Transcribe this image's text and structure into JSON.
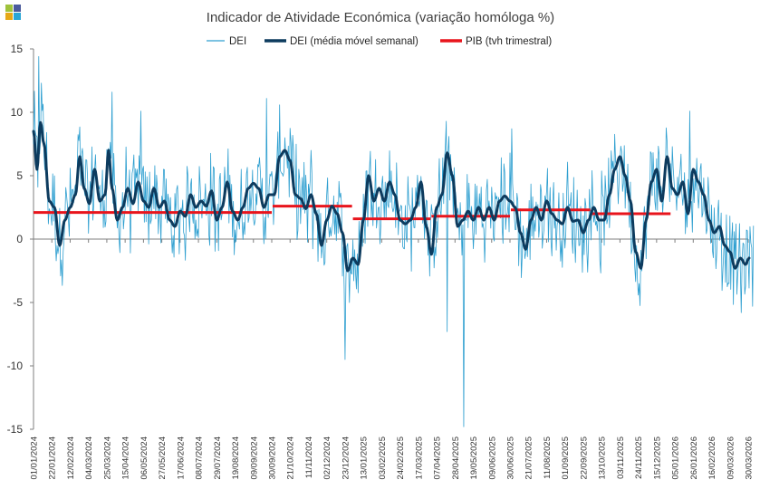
{
  "colors": {
    "dei": "#2e9fd0",
    "dei_ma": "#0d3b5e",
    "gdp": "#e8141c",
    "axis": "#7f7f7f",
    "logo": [
      "#9fc23b",
      "#4a5a9c",
      "#e6a817",
      "#2aa6d6"
    ]
  },
  "logo": {
    "name": "brand-logo-icon"
  },
  "chart_data": {
    "type": "line",
    "title": "Indicador de Atividade Económica (variação homóloga %)",
    "xlabel": "",
    "ylabel": "",
    "ylim": [
      -15,
      15
    ],
    "yticks": [
      15,
      10,
      5,
      0,
      -5,
      -10,
      -15
    ],
    "x_range": [
      "2024-01-01",
      "2026-03-30"
    ],
    "x_tick_labels": [
      "01/01/2024",
      "22/01/2024",
      "12/02/2024",
      "04/03/2024",
      "25/03/2024",
      "15/04/2024",
      "06/05/2024",
      "27/05/2024",
      "17/06/2024",
      "08/07/2024",
      "29/07/2024",
      "19/08/2024",
      "09/09/2024",
      "30/09/2024",
      "21/10/2024",
      "11/11/2024",
      "02/12/2024",
      "23/12/2024",
      "13/01/2025",
      "03/02/2025",
      "24/02/2025",
      "17/03/2025",
      "07/04/2025",
      "28/04/2025",
      "19/05/2025",
      "09/06/2025",
      "30/06/2025",
      "21/07/2025",
      "11/08/2025",
      "01/09/2025",
      "22/09/2025",
      "13/10/2025",
      "03/11/2025",
      "24/11/2025",
      "15/12/2025",
      "05/01/2026",
      "26/01/2026",
      "16/02/2026",
      "09/03/2026",
      "30/03/2026"
    ],
    "legend": [
      "DEI",
      "DEI (média móvel semanal)",
      "PIB (tvh trimestral)"
    ],
    "legend_position": "top-center",
    "series": [
      {
        "name": "DEI (média móvel semanal)",
        "note": "weekly-average anchor values (day index from 01/01/2024, value %)",
        "anchors": [
          [
            0,
            8.5
          ],
          [
            4,
            5.5
          ],
          [
            8,
            9.2
          ],
          [
            12,
            7.5
          ],
          [
            18,
            3
          ],
          [
            24,
            2.5
          ],
          [
            30,
            -0.5
          ],
          [
            36,
            1.5
          ],
          [
            42,
            2.5
          ],
          [
            48,
            3.5
          ],
          [
            53,
            6.5
          ],
          [
            58,
            4
          ],
          [
            64,
            2.8
          ],
          [
            70,
            5.5
          ],
          [
            76,
            3
          ],
          [
            82,
            3.5
          ],
          [
            86,
            7
          ],
          [
            90,
            4
          ],
          [
            96,
            1.5
          ],
          [
            102,
            2.5
          ],
          [
            108,
            4
          ],
          [
            114,
            2.8
          ],
          [
            120,
            4.5
          ],
          [
            126,
            3
          ],
          [
            132,
            2.5
          ],
          [
            138,
            4
          ],
          [
            144,
            2.5
          ],
          [
            150,
            3
          ],
          [
            156,
            1.5
          ],
          [
            162,
            1
          ],
          [
            168,
            2.2
          ],
          [
            174,
            1.8
          ],
          [
            180,
            3.5
          ],
          [
            186,
            2.5
          ],
          [
            192,
            3
          ],
          [
            198,
            2.6
          ],
          [
            204,
            3.8
          ],
          [
            210,
            1.5
          ],
          [
            216,
            2.5
          ],
          [
            222,
            4.5
          ],
          [
            228,
            2.2
          ],
          [
            234,
            1.5
          ],
          [
            240,
            2.5
          ],
          [
            246,
            4
          ],
          [
            252,
            4.4
          ],
          [
            258,
            4
          ],
          [
            264,
            2.5
          ],
          [
            270,
            3.5
          ],
          [
            276,
            3.5
          ],
          [
            282,
            6.5
          ],
          [
            288,
            7
          ],
          [
            294,
            6.2
          ],
          [
            300,
            3.5
          ],
          [
            306,
            3.2
          ],
          [
            312,
            2.4
          ],
          [
            318,
            3.5
          ],
          [
            324,
            2
          ],
          [
            330,
            -0.5
          ],
          [
            336,
            1.5
          ],
          [
            342,
            2.6
          ],
          [
            348,
            2
          ],
          [
            354,
            0.5
          ],
          [
            360,
            -2.5
          ],
          [
            366,
            -1.5
          ],
          [
            372,
            -2
          ],
          [
            378,
            1.5
          ],
          [
            384,
            5
          ],
          [
            390,
            3
          ],
          [
            396,
            4
          ],
          [
            402,
            3
          ],
          [
            408,
            4.5
          ],
          [
            414,
            3.5
          ],
          [
            420,
            1.5
          ],
          [
            426,
            1.2
          ],
          [
            432,
            1.5
          ],
          [
            438,
            2.5
          ],
          [
            444,
            4.5
          ],
          [
            450,
            1
          ],
          [
            456,
            -1.2
          ],
          [
            462,
            2.5
          ],
          [
            468,
            3.5
          ],
          [
            474,
            6.8
          ],
          [
            480,
            5
          ],
          [
            486,
            1
          ],
          [
            492,
            1.5
          ],
          [
            498,
            2.2
          ],
          [
            504,
            1.5
          ],
          [
            510,
            2.5
          ],
          [
            516,
            1.5
          ],
          [
            522,
            2.5
          ],
          [
            528,
            1.5
          ],
          [
            534,
            3
          ],
          [
            540,
            3.4
          ],
          [
            546,
            3
          ],
          [
            552,
            2.5
          ],
          [
            558,
            0.5
          ],
          [
            564,
            -0.8
          ],
          [
            570,
            1.5
          ],
          [
            576,
            2.5
          ],
          [
            582,
            1.5
          ],
          [
            588,
            3
          ],
          [
            594,
            2
          ],
          [
            600,
            1.5
          ],
          [
            606,
            1.2
          ],
          [
            612,
            2.5
          ],
          [
            618,
            1.4
          ],
          [
            624,
            1.5
          ],
          [
            630,
            0.5
          ],
          [
            636,
            1.5
          ],
          [
            642,
            2.5
          ],
          [
            648,
            1.5
          ],
          [
            654,
            1.5
          ],
          [
            660,
            3.5
          ],
          [
            666,
            5.5
          ],
          [
            672,
            6.5
          ],
          [
            678,
            5
          ],
          [
            684,
            3
          ],
          [
            690,
            -1
          ],
          [
            696,
            -2.3
          ],
          [
            702,
            1.5
          ],
          [
            708,
            4.5
          ],
          [
            714,
            5.5
          ],
          [
            720,
            3
          ],
          [
            726,
            6.5
          ],
          [
            732,
            4
          ],
          [
            738,
            3.5
          ],
          [
            744,
            4.5
          ],
          [
            750,
            2
          ],
          [
            756,
            5.5
          ],
          [
            762,
            4.5
          ],
          [
            768,
            3.5
          ],
          [
            774,
            1.5
          ],
          [
            780,
            0.5
          ],
          [
            786,
            1
          ],
          [
            792,
            -0.5
          ],
          [
            798,
            -1
          ],
          [
            804,
            -2.3
          ],
          [
            810,
            -1.5
          ],
          [
            816,
            -2
          ],
          [
            820,
            -1.5
          ]
        ]
      },
      {
        "name": "PIB (tvh trimestral)",
        "segments": [
          {
            "from": "01/01/2024",
            "to": "30/09/2024",
            "value": 2.1
          },
          {
            "from": "01/10/2024",
            "to": "31/12/2024",
            "value": 2.6
          },
          {
            "from": "01/01/2025",
            "to": "31/03/2025",
            "value": 1.6
          },
          {
            "from": "01/04/2025",
            "to": "30/06/2025",
            "value": 1.8
          },
          {
            "from": "01/07/2025",
            "to": "30/09/2025",
            "value": 2.3
          },
          {
            "from": "01/10/2025",
            "to": "31/12/2025",
            "value": 2.0
          }
        ]
      },
      {
        "name": "DEI",
        "note": "daily values approximated as the weekly average plus day-level noise",
        "spikes": [
          [
            6,
            14.4
          ],
          [
            9,
            12.3
          ],
          [
            90,
            11.6
          ],
          [
            123,
            10.1
          ],
          [
            267,
            11.1
          ],
          [
            357,
            -9.5
          ],
          [
            474,
            -7.3
          ],
          [
            493,
            -14.8
          ],
          [
            548,
            8.7
          ],
          [
            752,
            10.1
          ],
          [
            811,
            -5.8
          ],
          [
            824,
            -5.3
          ]
        ]
      }
    ]
  }
}
